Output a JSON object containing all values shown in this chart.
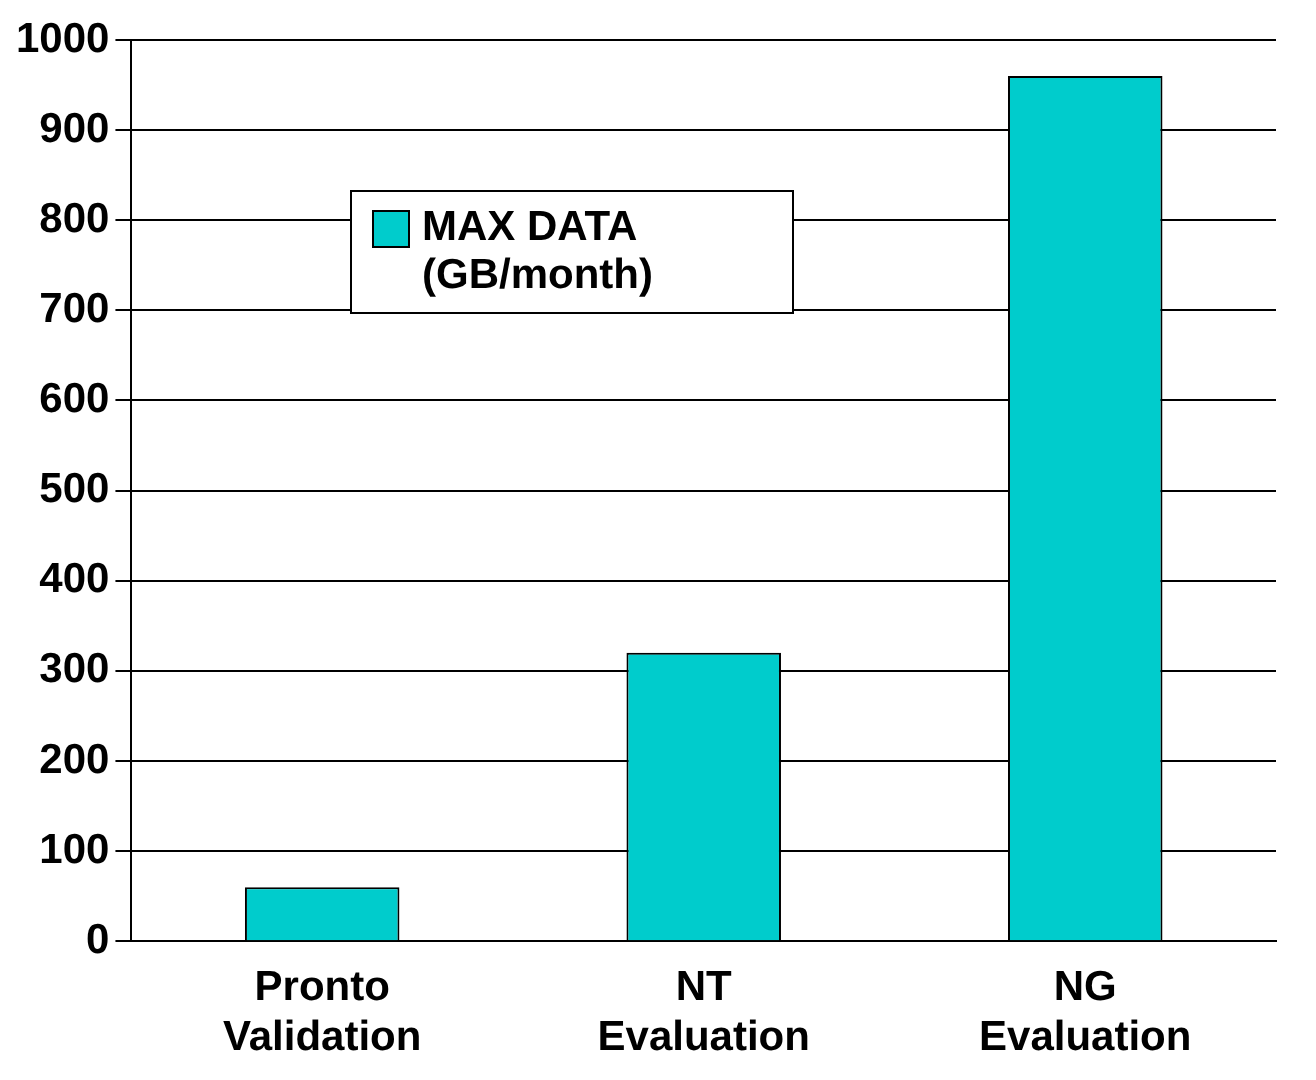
{
  "chart_data": {
    "type": "bar",
    "categories": [
      "Pronto Validation",
      "NT Evaluation",
      "NG Evaluation"
    ],
    "series": [
      {
        "name": "MAX DATA (GB/month)",
        "color": "#00cccc",
        "values": [
          60,
          320,
          960
        ]
      }
    ],
    "ylim": [
      0,
      1000
    ],
    "yticks": [
      0,
      100,
      200,
      300,
      400,
      500,
      600,
      700,
      800,
      900,
      1000
    ],
    "grid": "y",
    "legend": "top left"
  }
}
